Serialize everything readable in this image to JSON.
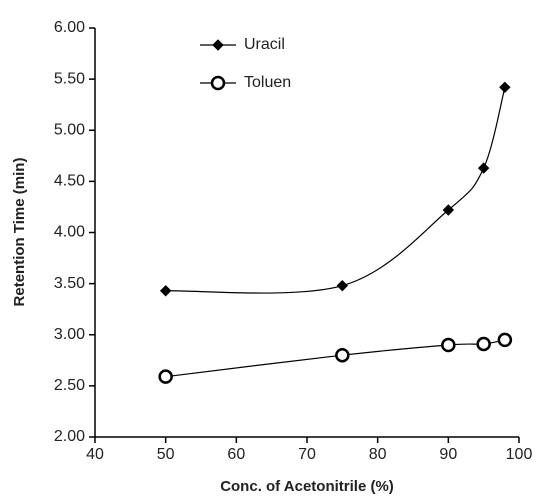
{
  "chart_data": {
    "type": "line",
    "xlabel": "Conc. of Acetonitrile (%)",
    "ylabel": "Retention Time (min)",
    "x": [
      50,
      75,
      90,
      95,
      98
    ],
    "series": [
      {
        "name": "Uracil",
        "color": "#000000",
        "marker": "diamond",
        "values": [
          3.43,
          3.48,
          4.22,
          4.63,
          5.42
        ]
      },
      {
        "name": "Toluen",
        "color": "#000000",
        "marker": "circle",
        "values": [
          2.59,
          2.8,
          2.9,
          2.91,
          2.95
        ]
      }
    ],
    "xlim": [
      40,
      100
    ],
    "xticks": [
      40,
      50,
      60,
      70,
      80,
      90,
      100
    ],
    "ylim": [
      2,
      6
    ],
    "yticks": [
      {
        "value": 2,
        "label": "2.00"
      },
      {
        "value": 2.5,
        "label": "2.50"
      },
      {
        "value": 3,
        "label": "3.00"
      },
      {
        "value": 3.5,
        "label": "3.50"
      },
      {
        "value": 4,
        "label": "4.00"
      },
      {
        "value": 4.5,
        "label": "4.50"
      },
      {
        "value": 5,
        "label": "5.00"
      },
      {
        "value": 5.5,
        "label": "5.50"
      },
      {
        "value": 6,
        "label": "6.00"
      }
    ],
    "smooth": true,
    "grid": false,
    "legend": "upper left"
  }
}
